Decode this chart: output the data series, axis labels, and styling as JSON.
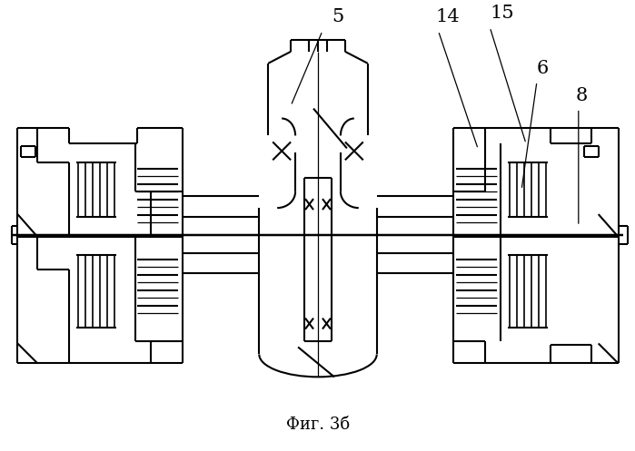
{
  "title": "Фиг. 3б",
  "background": "#ffffff",
  "line_color": "#000000",
  "lw": 1.5,
  "tlw": 0.9
}
